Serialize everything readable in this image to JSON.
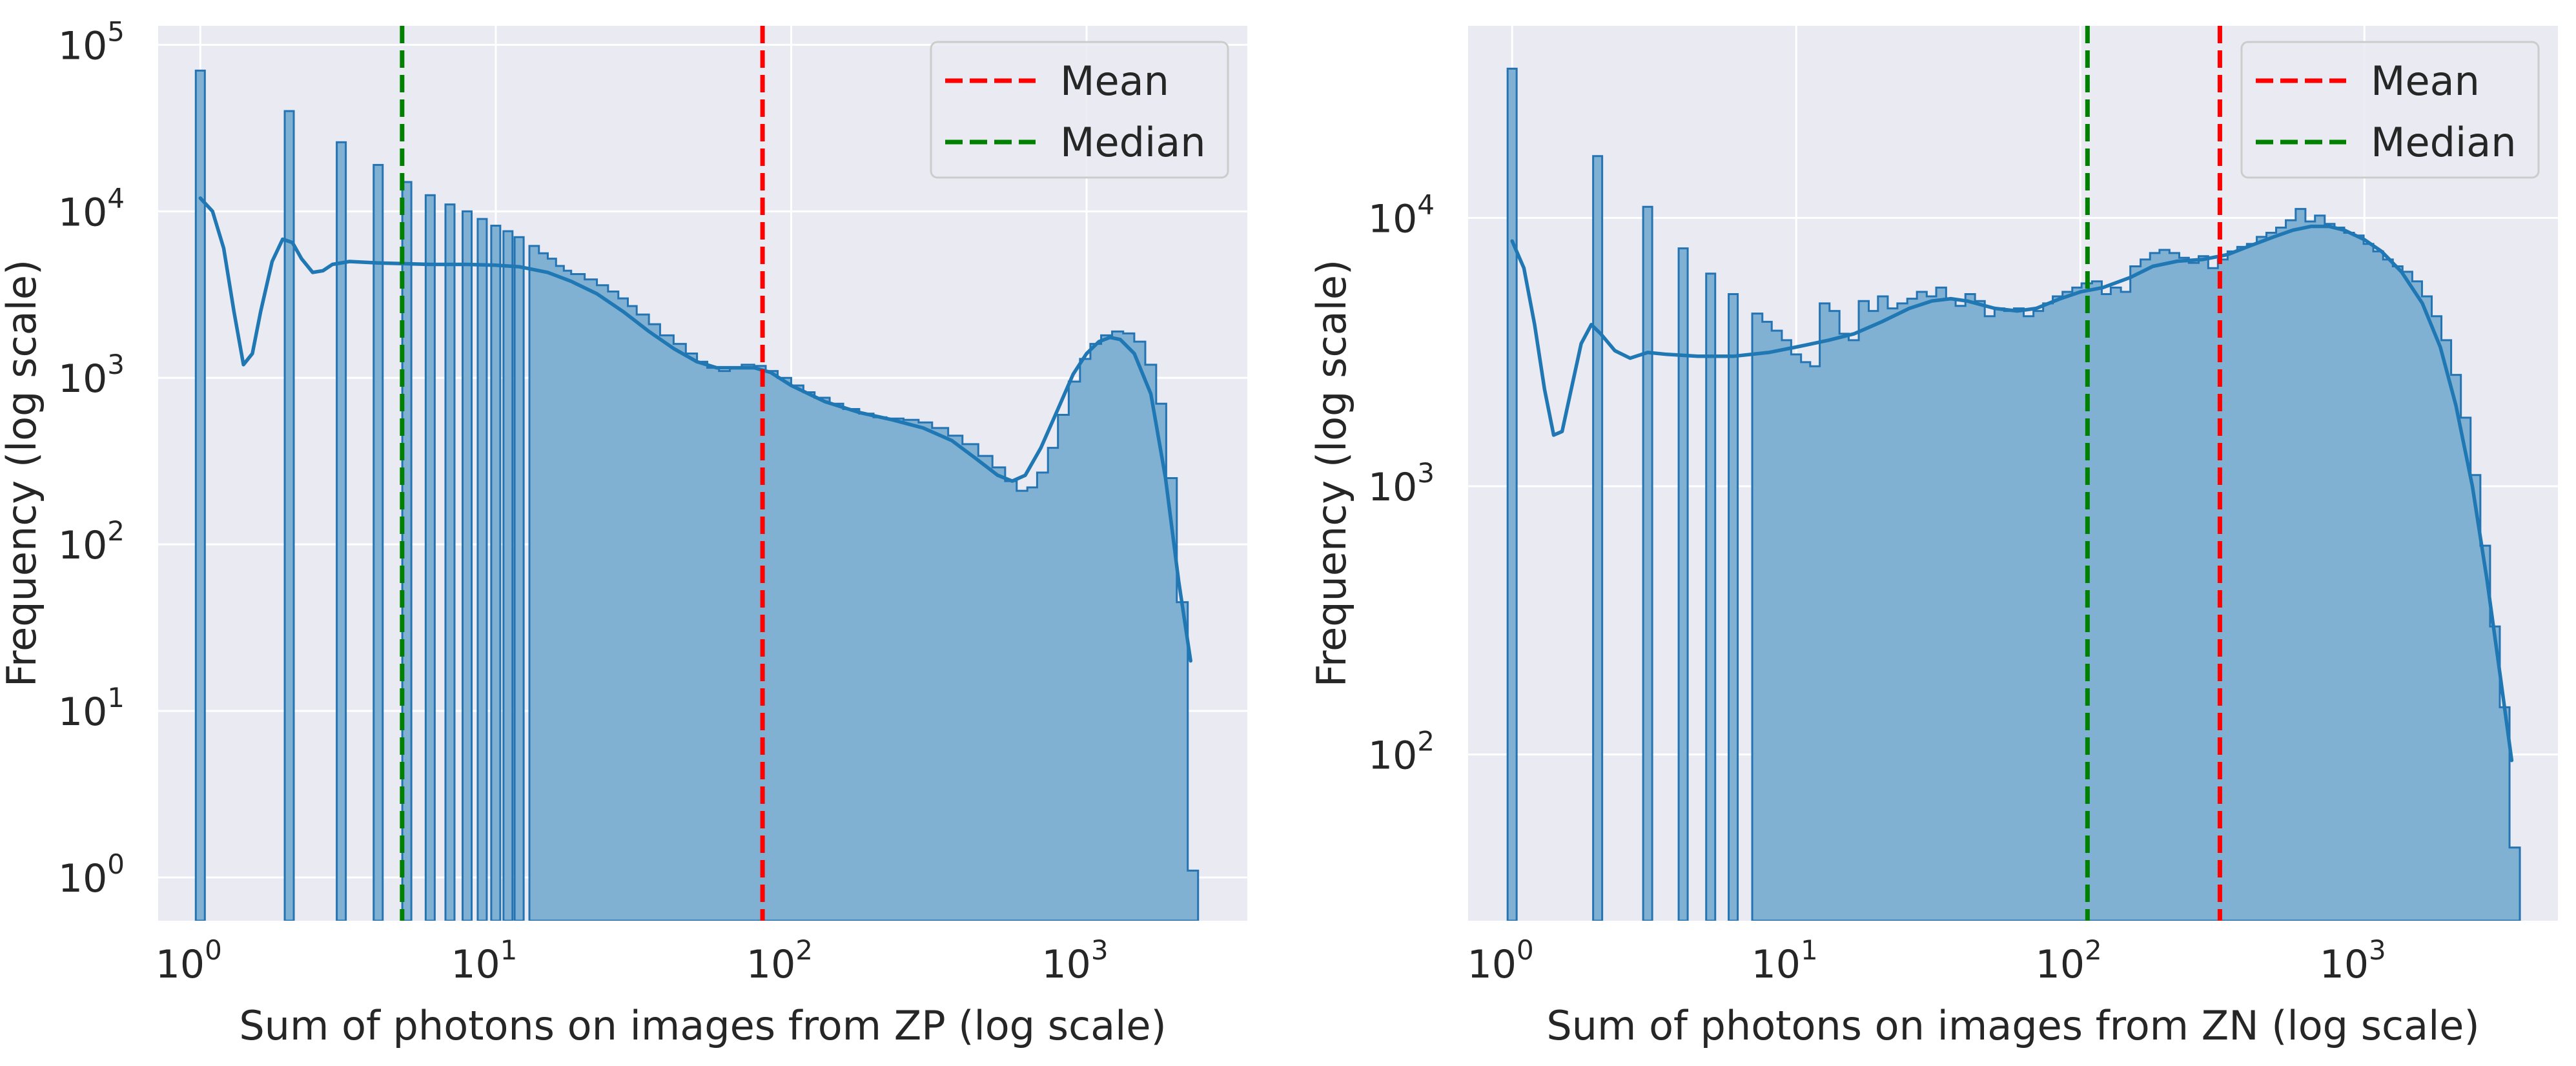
{
  "chart_data": [
    {
      "type": "histogram",
      "xlabel": "Sum of photons on images from ZP (log scale)",
      "ylabel": "Frequency (log scale)",
      "xscale": "log",
      "yscale": "log",
      "xlim": [
        0.72,
        3500
      ],
      "ylim": [
        0.55,
        130000
      ],
      "xticks": [
        {
          "value": 1,
          "base": "10",
          "exp": "0"
        },
        {
          "value": 10,
          "base": "10",
          "exp": "1"
        },
        {
          "value": 100,
          "base": "10",
          "exp": "2"
        },
        {
          "value": 1000,
          "base": "10",
          "exp": "3"
        }
      ],
      "yticks": [
        {
          "value": 1,
          "base": "10",
          "exp": "0"
        },
        {
          "value": 10,
          "base": "10",
          "exp": "1"
        },
        {
          "value": 100,
          "base": "10",
          "exp": "2"
        },
        {
          "value": 1000,
          "base": "10",
          "exp": "3"
        },
        {
          "value": 10000,
          "base": "10",
          "exp": "4"
        },
        {
          "value": 100000,
          "base": "10",
          "exp": "5"
        }
      ],
      "spikes": [
        {
          "x": 1,
          "count": 70000
        },
        {
          "x": 2,
          "count": 40000
        },
        {
          "x": 3,
          "count": 26000
        },
        {
          "x": 4,
          "count": 19000
        },
        {
          "x": 5,
          "count": 15000
        },
        {
          "x": 6,
          "count": 12500
        },
        {
          "x": 7,
          "count": 11000
        },
        {
          "x": 8,
          "count": 10000
        },
        {
          "x": 9,
          "count": 9000
        },
        {
          "x": 10,
          "count": 8200
        },
        {
          "x": 11,
          "count": 7600
        },
        {
          "x": 12,
          "count": 7000
        }
      ],
      "continuous": [
        [
          13,
          6200
        ],
        [
          14,
          5600
        ],
        [
          15,
          5200
        ],
        [
          16,
          4700
        ],
        [
          17,
          4400
        ],
        [
          18,
          4200
        ],
        [
          20,
          3900
        ],
        [
          22,
          3600
        ],
        [
          24,
          3300
        ],
        [
          26,
          3000
        ],
        [
          28,
          2700
        ],
        [
          30,
          2400
        ],
        [
          33,
          2100
        ],
        [
          36,
          1800
        ],
        [
          40,
          1600
        ],
        [
          44,
          1400
        ],
        [
          48,
          1250
        ],
        [
          52,
          1150
        ],
        [
          57,
          1100
        ],
        [
          62,
          1150
        ],
        [
          68,
          1200
        ],
        [
          75,
          1180
        ],
        [
          82,
          1100
        ],
        [
          90,
          1000
        ],
        [
          100,
          900
        ],
        [
          110,
          820
        ],
        [
          120,
          760
        ],
        [
          135,
          700
        ],
        [
          150,
          650
        ],
        [
          170,
          610
        ],
        [
          190,
          580
        ],
        [
          210,
          570
        ],
        [
          240,
          560
        ],
        [
          270,
          540
        ],
        [
          300,
          500
        ],
        [
          340,
          450
        ],
        [
          380,
          400
        ],
        [
          430,
          340
        ],
        [
          480,
          290
        ],
        [
          530,
          240
        ],
        [
          580,
          210
        ],
        [
          630,
          220
        ],
        [
          680,
          270
        ],
        [
          740,
          380
        ],
        [
          800,
          600
        ],
        [
          870,
          950
        ],
        [
          950,
          1300
        ],
        [
          1030,
          1600
        ],
        [
          1120,
          1800
        ],
        [
          1220,
          1900
        ],
        [
          1330,
          1850
        ],
        [
          1450,
          1650
        ],
        [
          1580,
          1200
        ],
        [
          1720,
          700
        ],
        [
          1860,
          250
        ],
        [
          2020,
          45
        ],
        [
          2200,
          1.1
        ]
      ],
      "kde": [
        [
          1.0,
          12000
        ],
        [
          1.1,
          10000
        ],
        [
          1.2,
          6000
        ],
        [
          1.3,
          2500
        ],
        [
          1.4,
          1200
        ],
        [
          1.5,
          1400
        ],
        [
          1.6,
          2500
        ],
        [
          1.75,
          5000
        ],
        [
          1.9,
          6800
        ],
        [
          2.05,
          6500
        ],
        [
          2.2,
          5200
        ],
        [
          2.4,
          4300
        ],
        [
          2.6,
          4400
        ],
        [
          2.8,
          4800
        ],
        [
          3.2,
          5000
        ],
        [
          4,
          4900
        ],
        [
          6,
          4800
        ],
        [
          8,
          4800
        ],
        [
          10,
          4750
        ],
        [
          12,
          4650
        ],
        [
          15,
          4300
        ],
        [
          18,
          3800
        ],
        [
          22,
          3200
        ],
        [
          27,
          2500
        ],
        [
          33,
          1900
        ],
        [
          40,
          1500
        ],
        [
          48,
          1250
        ],
        [
          56,
          1150
        ],
        [
          65,
          1150
        ],
        [
          75,
          1150
        ],
        [
          85,
          1080
        ],
        [
          100,
          900
        ],
        [
          130,
          720
        ],
        [
          170,
          620
        ],
        [
          220,
          560
        ],
        [
          280,
          500
        ],
        [
          350,
          420
        ],
        [
          420,
          330
        ],
        [
          500,
          260
        ],
        [
          560,
          240
        ],
        [
          620,
          260
        ],
        [
          700,
          380
        ],
        [
          800,
          650
        ],
        [
          900,
          1050
        ],
        [
          1000,
          1400
        ],
        [
          1100,
          1650
        ],
        [
          1200,
          1750
        ],
        [
          1300,
          1700
        ],
        [
          1450,
          1400
        ],
        [
          1650,
          800
        ],
        [
          1850,
          250
        ],
        [
          2050,
          60
        ],
        [
          2250,
          20
        ]
      ],
      "lines": [
        {
          "label": "Mean",
          "x": 80,
          "color": "#ff0000"
        },
        {
          "label": "Median",
          "x": 4.82,
          "color": "#008000"
        }
      ],
      "legend": {
        "position": "top-right",
        "entries": [
          "Mean",
          "Median"
        ]
      },
      "grid": true
    },
    {
      "type": "histogram",
      "xlabel": "Sum of photons on images from ZN (log scale)",
      "ylabel": "Frequency (log scale)",
      "xscale": "log",
      "yscale": "log",
      "xlim": [
        0.7,
        4800
      ],
      "ylim": [
        24,
        52000
      ],
      "xticks": [
        {
          "value": 1,
          "base": "10",
          "exp": "0"
        },
        {
          "value": 10,
          "base": "10",
          "exp": "1"
        },
        {
          "value": 100,
          "base": "10",
          "exp": "2"
        },
        {
          "value": 1000,
          "base": "10",
          "exp": "3"
        }
      ],
      "yticks": [
        {
          "value": 100,
          "base": "10",
          "exp": "2"
        },
        {
          "value": 1000,
          "base": "10",
          "exp": "3"
        },
        {
          "value": 10000,
          "base": "10",
          "exp": "4"
        }
      ],
      "spikes": [
        {
          "x": 1,
          "count": 36000
        },
        {
          "x": 2,
          "count": 17000
        },
        {
          "x": 3,
          "count": 11000
        },
        {
          "x": 4,
          "count": 7700
        },
        {
          "x": 5,
          "count": 6200
        },
        {
          "x": 6,
          "count": 5200
        }
      ],
      "continuous": [
        [
          7,
          4400
        ],
        [
          7.6,
          4100
        ],
        [
          8.2,
          3800
        ],
        [
          8.9,
          3500
        ],
        [
          9.6,
          3100
        ],
        [
          10.4,
          2900
        ],
        [
          11.2,
          2800
        ],
        [
          12.1,
          4800
        ],
        [
          13.1,
          4500
        ],
        [
          14.2,
          3700
        ],
        [
          15.3,
          3500
        ],
        [
          16.6,
          4900
        ],
        [
          18,
          4500
        ],
        [
          19.4,
          5100
        ],
        [
          21,
          4600
        ],
        [
          22.7,
          4800
        ],
        [
          24.6,
          5000
        ],
        [
          26.6,
          5300
        ],
        [
          28.8,
          5100
        ],
        [
          31.1,
          5500
        ],
        [
          33.7,
          5000
        ],
        [
          36.4,
          4700
        ],
        [
          39.4,
          5200
        ],
        [
          42.6,
          4900
        ],
        [
          46.1,
          4300
        ],
        [
          49.9,
          4600
        ],
        [
          54,
          4500
        ],
        [
          58.4,
          4600
        ],
        [
          63.2,
          4300
        ],
        [
          68.4,
          4500
        ],
        [
          74,
          4800
        ],
        [
          80,
          5100
        ],
        [
          86.6,
          5300
        ],
        [
          93.7,
          5500
        ],
        [
          101,
          5700
        ],
        [
          110,
          5800
        ],
        [
          119,
          5200
        ],
        [
          128,
          5500
        ],
        [
          139,
          5300
        ],
        [
          150,
          6600
        ],
        [
          163,
          7000
        ],
        [
          176,
          7400
        ],
        [
          190,
          7600
        ],
        [
          206,
          7400
        ],
        [
          223,
          7100
        ],
        [
          241,
          6800
        ],
        [
          261,
          7200
        ],
        [
          282,
          6500
        ],
        [
          305,
          7000
        ],
        [
          330,
          7500
        ],
        [
          357,
          7800
        ],
        [
          386,
          8000
        ],
        [
          418,
          8500
        ],
        [
          452,
          8800
        ],
        [
          489,
          9200
        ],
        [
          529,
          9800
        ],
        [
          573,
          10800
        ],
        [
          620,
          9700
        ],
        [
          670,
          10200
        ],
        [
          725,
          9500
        ],
        [
          785,
          9200
        ],
        [
          849,
          8800
        ],
        [
          919,
          8600
        ],
        [
          994,
          8000
        ],
        [
          1075,
          7500
        ],
        [
          1164,
          7000
        ],
        [
          1259,
          6600
        ],
        [
          1362,
          6300
        ],
        [
          1474,
          5800
        ],
        [
          1595,
          5100
        ],
        [
          1726,
          4300
        ],
        [
          1867,
          3500
        ],
        [
          2020,
          2600
        ],
        [
          2186,
          1800
        ],
        [
          2365,
          1100
        ],
        [
          2560,
          600
        ],
        [
          2770,
          300
        ],
        [
          2997,
          150
        ],
        [
          3243,
          45
        ]
      ],
      "kde": [
        [
          1.0,
          8200
        ],
        [
          1.1,
          6500
        ],
        [
          1.2,
          4000
        ],
        [
          1.3,
          2300
        ],
        [
          1.4,
          1550
        ],
        [
          1.5,
          1600
        ],
        [
          1.6,
          2200
        ],
        [
          1.75,
          3400
        ],
        [
          1.9,
          4000
        ],
        [
          2.05,
          3700
        ],
        [
          2.3,
          3200
        ],
        [
          2.6,
          3000
        ],
        [
          3,
          3150
        ],
        [
          3.5,
          3100
        ],
        [
          4.5,
          3050
        ],
        [
          6,
          3050
        ],
        [
          8,
          3150
        ],
        [
          10,
          3300
        ],
        [
          13,
          3500
        ],
        [
          16,
          3700
        ],
        [
          20,
          4100
        ],
        [
          25,
          4600
        ],
        [
          30,
          4900
        ],
        [
          35,
          5000
        ],
        [
          40,
          4900
        ],
        [
          50,
          4600
        ],
        [
          60,
          4500
        ],
        [
          70,
          4600
        ],
        [
          85,
          5000
        ],
        [
          100,
          5300
        ],
        [
          120,
          5500
        ],
        [
          150,
          6000
        ],
        [
          180,
          6600
        ],
        [
          220,
          6900
        ],
        [
          270,
          7000
        ],
        [
          330,
          7300
        ],
        [
          400,
          7900
        ],
        [
          480,
          8500
        ],
        [
          560,
          9000
        ],
        [
          650,
          9300
        ],
        [
          750,
          9300
        ],
        [
          850,
          9000
        ],
        [
          1000,
          8300
        ],
        [
          1150,
          7500
        ],
        [
          1350,
          6300
        ],
        [
          1600,
          4800
        ],
        [
          1850,
          3300
        ],
        [
          2100,
          2000
        ],
        [
          2400,
          1000
        ],
        [
          2700,
          450
        ],
        [
          3000,
          200
        ],
        [
          3300,
          95
        ]
      ],
      "lines": [
        {
          "label": "Mean",
          "x": 310,
          "color": "#ff0000"
        },
        {
          "label": "Median",
          "x": 106,
          "color": "#008000"
        }
      ],
      "legend": {
        "position": "top-right",
        "entries": [
          "Mean",
          "Median"
        ]
      },
      "grid": true
    }
  ]
}
